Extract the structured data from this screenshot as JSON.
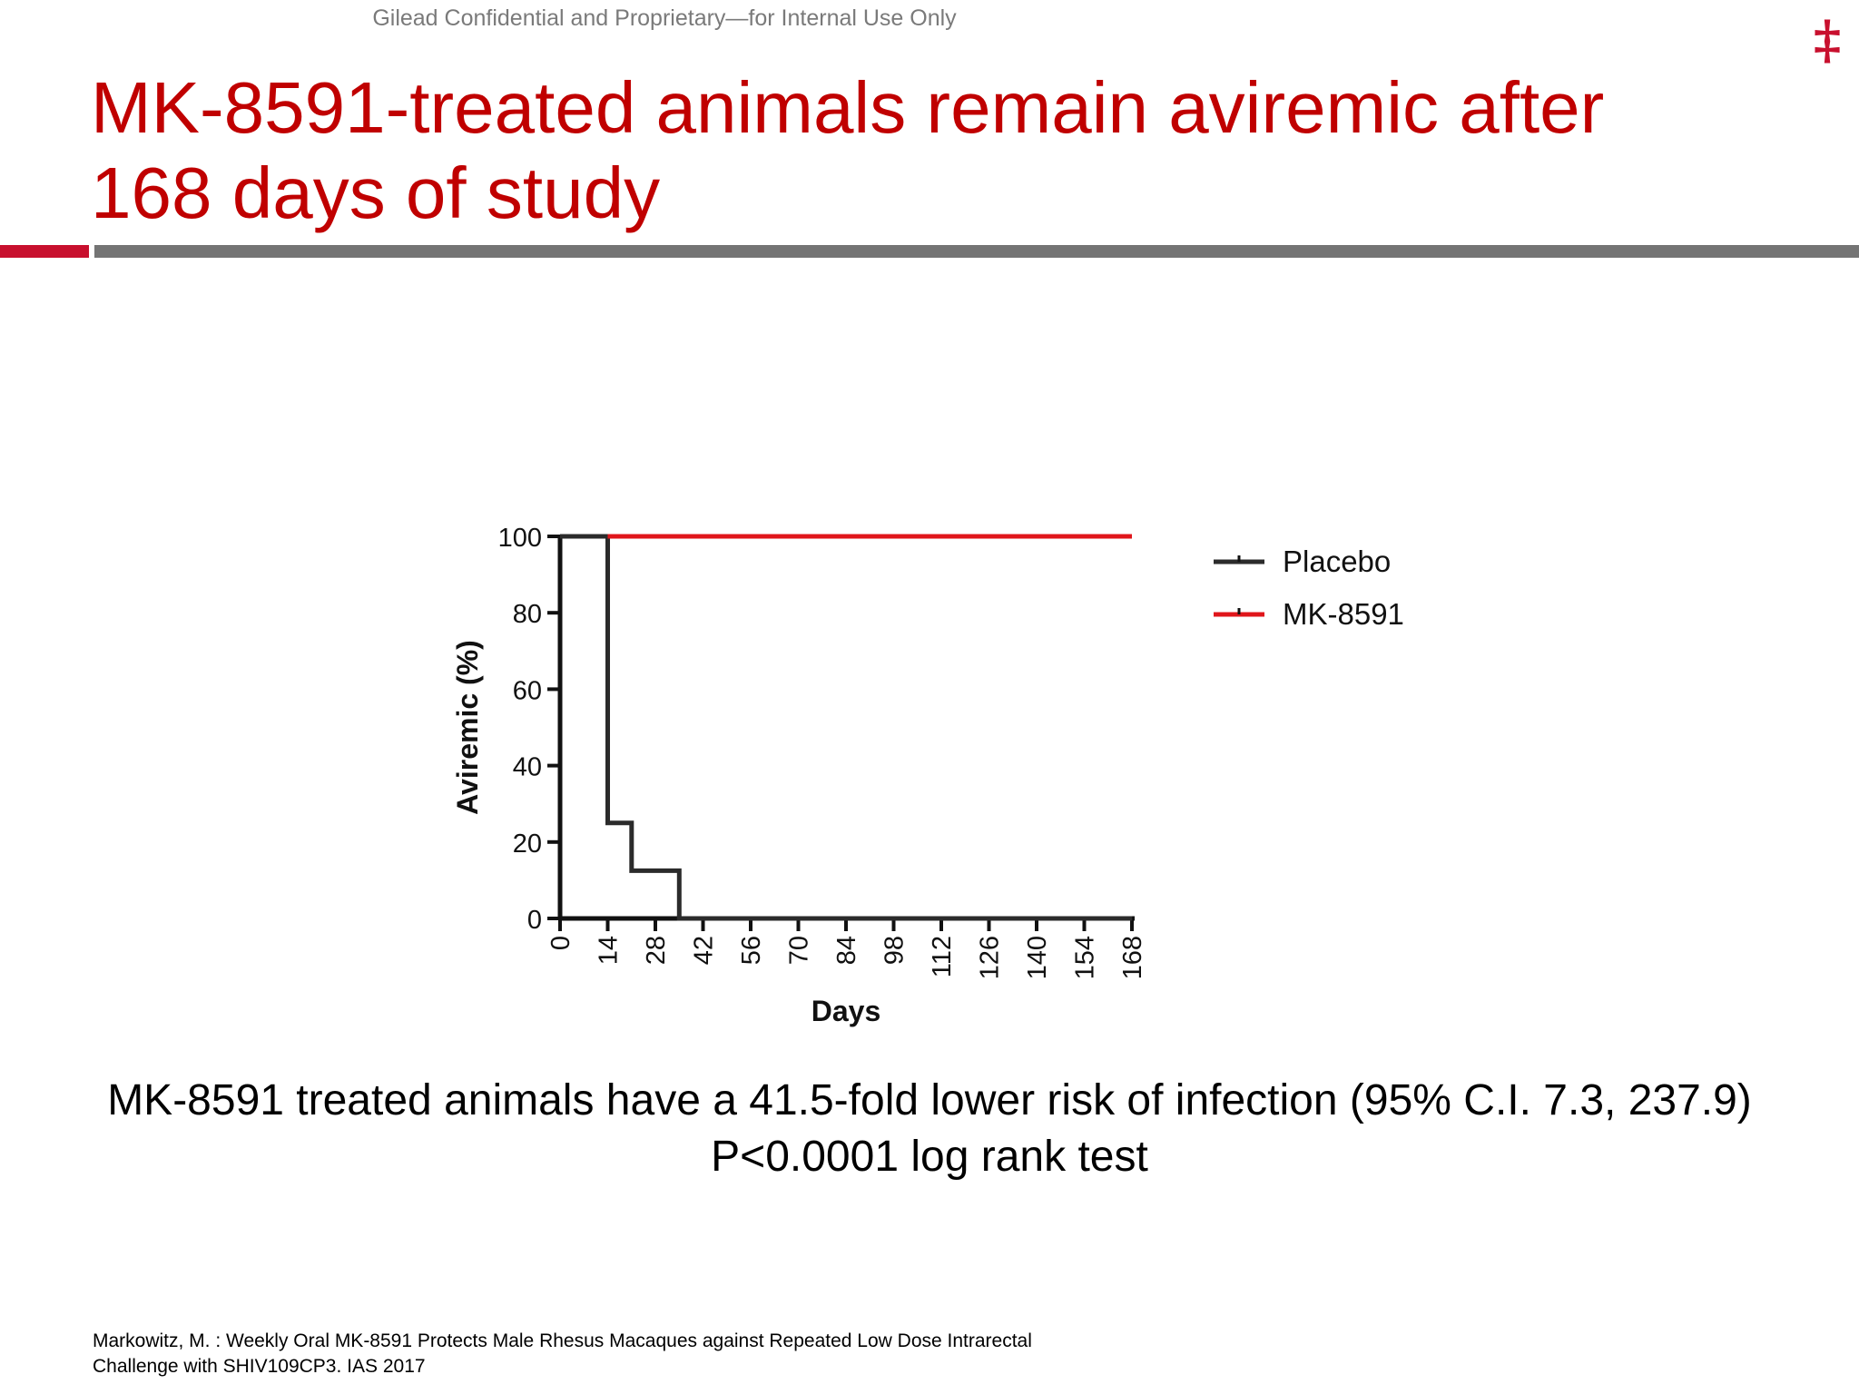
{
  "header": {
    "confidential_notice": "Gilead Confidential and Proprietary—for Internal Use Only",
    "logo_glyph": "‡",
    "title_line1": "MK-8591-treated animals remain aviremic after",
    "title_line2": "168 days of study"
  },
  "colors": {
    "title": "#c00000",
    "accent": "#c8102e",
    "rule_gray": "#747474",
    "placebo": "#2b2b2b",
    "mk8591": "#e0161b"
  },
  "chart_data": {
    "type": "line",
    "step": true,
    "xlabel": "Days",
    "ylabel": "Aviremic (%)",
    "xlim": [
      0,
      168
    ],
    "ylim": [
      0,
      100
    ],
    "xticks": [
      "0",
      "14",
      "28",
      "42",
      "56",
      "70",
      "84",
      "98",
      "112",
      "126",
      "140",
      "154",
      "168"
    ],
    "yticks": [
      "0",
      "20",
      "40",
      "60",
      "80",
      "100"
    ],
    "legend_position": "right",
    "series": [
      {
        "name": "Placebo",
        "color": "#2b2b2b",
        "points": [
          [
            0,
            100
          ],
          [
            14,
            100
          ],
          [
            14,
            25
          ],
          [
            21,
            25
          ],
          [
            21,
            12.5
          ],
          [
            35,
            12.5
          ],
          [
            35,
            0
          ],
          [
            168,
            0
          ]
        ]
      },
      {
        "name": "MK-8591",
        "color": "#e0161b",
        "points": [
          [
            14,
            100
          ],
          [
            168,
            100
          ]
        ]
      }
    ]
  },
  "caption": {
    "line1": "MK-8591 treated animals have a 41.5-fold lower risk of infection (95% C.I. 7.3, 237.9)",
    "line2": "P<0.0001 log rank test"
  },
  "citation": {
    "line1": "Markowitz, M. : Weekly Oral MK-8591 Protects Male Rhesus Macaques against Repeated Low Dose Intrarectal",
    "line2": "Challenge with SHIV109CP3. IAS 2017"
  }
}
